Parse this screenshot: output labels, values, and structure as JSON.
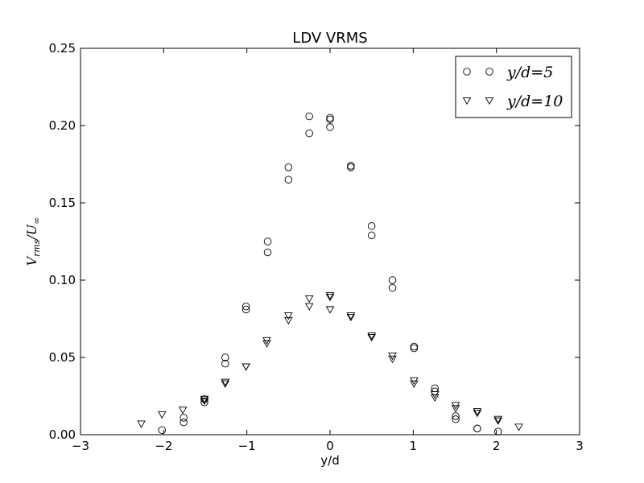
{
  "chart_data": {
    "type": "scatter",
    "title": "LDV VRMS",
    "xlabel": "y/d",
    "ylabel": "V_rms/U_∞",
    "xlim": [
      -3,
      3
    ],
    "ylim": [
      0,
      0.25
    ],
    "xticks": [
      -3,
      -2,
      -1,
      0,
      1,
      2,
      3
    ],
    "xtick_labels": [
      "−3",
      "−2",
      "−1",
      "0",
      "1",
      "2",
      "3"
    ],
    "yticks": [
      0,
      0.05,
      0.1,
      0.15,
      0.2,
      0.25
    ],
    "ytick_labels": [
      "0.00",
      "0.05",
      "0.10",
      "0.15",
      "0.20",
      "0.25"
    ],
    "grid": false,
    "legend_position": "top-right",
    "series": [
      {
        "name": "y/d=5",
        "marker": "circle",
        "points": [
          [
            -2.02,
            0.003
          ],
          [
            -1.76,
            0.008
          ],
          [
            -1.76,
            0.011
          ],
          [
            -1.51,
            0.021
          ],
          [
            -1.51,
            0.023
          ],
          [
            -1.26,
            0.046
          ],
          [
            -1.26,
            0.05
          ],
          [
            -1.01,
            0.081
          ],
          [
            -1.01,
            0.083
          ],
          [
            -0.75,
            0.118
          ],
          [
            -0.75,
            0.125
          ],
          [
            -0.5,
            0.165
          ],
          [
            -0.5,
            0.173
          ],
          [
            -0.25,
            0.195
          ],
          [
            -0.25,
            0.206
          ],
          [
            0.0,
            0.199
          ],
          [
            0.0,
            0.204
          ],
          [
            0.0,
            0.205
          ],
          [
            0.25,
            0.173
          ],
          [
            0.25,
            0.174
          ],
          [
            0.5,
            0.129
          ],
          [
            0.5,
            0.135
          ],
          [
            0.75,
            0.095
          ],
          [
            0.75,
            0.1
          ],
          [
            1.01,
            0.056
          ],
          [
            1.01,
            0.057
          ],
          [
            1.26,
            0.028
          ],
          [
            1.26,
            0.03
          ],
          [
            1.51,
            0.01
          ],
          [
            1.51,
            0.012
          ],
          [
            1.77,
            0.004
          ],
          [
            1.77,
            0.004
          ],
          [
            2.02,
            0.002
          ]
        ]
      },
      {
        "name": "y/d=10",
        "marker": "triangle-down",
        "points": [
          [
            -2.27,
            0.007
          ],
          [
            -2.02,
            0.013
          ],
          [
            -1.77,
            0.016
          ],
          [
            -1.51,
            0.022
          ],
          [
            -1.51,
            0.023
          ],
          [
            -1.26,
            0.033
          ],
          [
            -1.26,
            0.034
          ],
          [
            -1.01,
            0.044
          ],
          [
            -1.01,
            0.044
          ],
          [
            -0.76,
            0.059
          ],
          [
            -0.76,
            0.061
          ],
          [
            -0.5,
            0.074
          ],
          [
            -0.5,
            0.077
          ],
          [
            -0.25,
            0.083
          ],
          [
            -0.25,
            0.088
          ],
          [
            0.0,
            0.081
          ],
          [
            0.0,
            0.089
          ],
          [
            0.0,
            0.09
          ],
          [
            0.25,
            0.076
          ],
          [
            0.25,
            0.077
          ],
          [
            0.5,
            0.063
          ],
          [
            0.5,
            0.064
          ],
          [
            0.75,
            0.049
          ],
          [
            0.75,
            0.051
          ],
          [
            1.01,
            0.033
          ],
          [
            1.01,
            0.035
          ],
          [
            1.26,
            0.024
          ],
          [
            1.26,
            0.026
          ],
          [
            1.51,
            0.017
          ],
          [
            1.51,
            0.019
          ],
          [
            1.77,
            0.014
          ],
          [
            1.77,
            0.015
          ],
          [
            2.02,
            0.009
          ],
          [
            2.02,
            0.01
          ],
          [
            2.27,
            0.005
          ]
        ]
      }
    ]
  }
}
